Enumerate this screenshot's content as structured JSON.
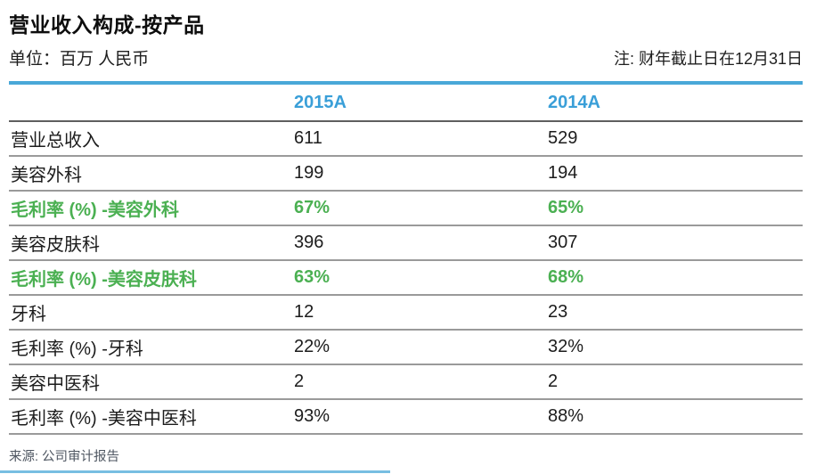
{
  "header": {
    "title": "营业收入构成-按产品",
    "unit": "单位：百万 人民币",
    "note": "注: 财年截止日在12月31日"
  },
  "table": {
    "columns": [
      "2015A",
      "2014A"
    ],
    "rows": [
      {
        "label": "营业总收入",
        "v2015": "611",
        "v2014": "529",
        "highlight": false
      },
      {
        "label": "美容外科",
        "v2015": "199",
        "v2014": "194",
        "highlight": false
      },
      {
        "label": "毛利率 (%) -美容外科",
        "v2015": "67%",
        "v2014": "65%",
        "highlight": true
      },
      {
        "label": "美容皮肤科",
        "v2015": "396",
        "v2014": "307",
        "highlight": false
      },
      {
        "label": "毛利率 (%) -美容皮肤科",
        "v2015": "63%",
        "v2014": "68%",
        "highlight": true
      },
      {
        "label": "牙科",
        "v2015": "12",
        "v2014": "23",
        "highlight": false
      },
      {
        "label": "毛利率 (%) -牙科",
        "v2015": "22%",
        "v2014": "32%",
        "highlight": false
      },
      {
        "label": "美容中医科",
        "v2015": "2",
        "v2014": "2",
        "highlight": false
      },
      {
        "label": "毛利率 (%) -美容中医科",
        "v2015": "93%",
        "v2014": "88%",
        "highlight": false
      }
    ]
  },
  "footer": {
    "source": "来源: 公司审计报告"
  },
  "colors": {
    "accent_blue": "#49a8d8",
    "header_text_blue": "#3a9fd8",
    "highlight_green": "#4bb052",
    "row_divider_gray": "#9a9a9a"
  },
  "chart_data": {
    "type": "table",
    "title": "营业收入构成-按产品",
    "unit": "百万 人民币",
    "note": "财年截止日在12月31日",
    "categories": [
      "2015A",
      "2014A"
    ],
    "series": [
      {
        "name": "营业总收入",
        "values": [
          611,
          529
        ]
      },
      {
        "name": "美容外科",
        "values": [
          199,
          194
        ]
      },
      {
        "name": "毛利率 (%) -美容外科",
        "values": [
          "67%",
          "65%"
        ]
      },
      {
        "name": "美容皮肤科",
        "values": [
          396,
          307
        ]
      },
      {
        "name": "毛利率 (%) -美容皮肤科",
        "values": [
          "63%",
          "68%"
        ]
      },
      {
        "name": "牙科",
        "values": [
          12,
          23
        ]
      },
      {
        "name": "毛利率 (%) -牙科",
        "values": [
          "22%",
          "32%"
        ]
      },
      {
        "name": "美容中医科",
        "values": [
          2,
          2
        ]
      },
      {
        "name": "毛利率 (%) -美容中医科",
        "values": [
          "93%",
          "88%"
        ]
      }
    ],
    "source": "公司审计报告"
  }
}
